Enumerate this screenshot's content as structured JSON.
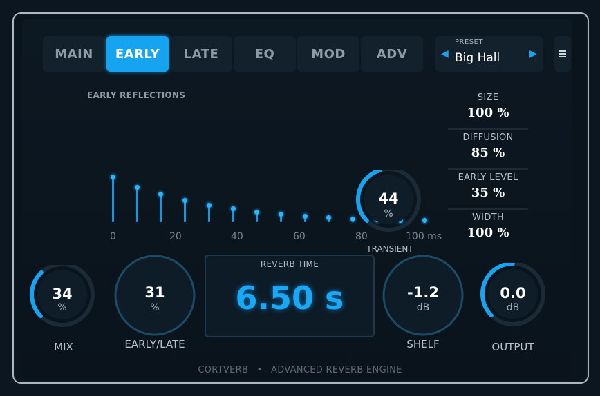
{
  "tabs": [
    {
      "label": "MAIN",
      "active": false
    },
    {
      "label": "EARLY",
      "active": true
    },
    {
      "label": "LATE",
      "active": false
    },
    {
      "label": "EQ",
      "active": false
    },
    {
      "label": "MOD",
      "active": false
    },
    {
      "label": "ADV",
      "active": false
    }
  ],
  "preset": {
    "label": "PRESET",
    "value": "Big Hall",
    "prev_icon": "triangle-left-icon",
    "next_icon": "triangle-right-icon"
  },
  "menu_icon": "hamburger-icon",
  "early": {
    "title": "EARLY REFLECTIONS",
    "reflection_levels": [
      1.0,
      0.78,
      0.62,
      0.48,
      0.38,
      0.3,
      0.23,
      0.18,
      0.13,
      0.1,
      0.08,
      0.06,
      0.05,
      0.04
    ],
    "axis_ticks": [
      "0",
      "20",
      "40",
      "60",
      "80",
      "100 ms"
    ]
  },
  "transient": {
    "value": "44",
    "unit": "%",
    "label": "TRANSIENT",
    "level": 0.44
  },
  "params": [
    {
      "label": "SIZE",
      "value": "100 %"
    },
    {
      "label": "DIFFUSION",
      "value": "85 %"
    },
    {
      "label": "EARLY LEVEL",
      "value": "35 %"
    },
    {
      "label": "WIDTH",
      "value": "100 %"
    }
  ],
  "mix": {
    "value": "34",
    "unit": "%",
    "label": "MIX",
    "level": 0.34
  },
  "early_late": {
    "value": "31",
    "unit": "%",
    "label": "EARLY/LATE"
  },
  "reverb_time": {
    "label": "REVERB TIME",
    "value": "6.50 s"
  },
  "shelf": {
    "value": "-1.2",
    "unit": "dB",
    "label": "SHELF"
  },
  "output": {
    "value": "0.0",
    "unit": "dB",
    "label": "OUTPUT",
    "level": 0.5
  },
  "footer": {
    "brand": "CORTVERB",
    "separator": "•",
    "tagline": "ADVANCED REVERB ENGINE"
  },
  "colors": {
    "accent": "#16a3f0",
    "ring_track": "#1a2a36",
    "panel": "#0a141c"
  }
}
